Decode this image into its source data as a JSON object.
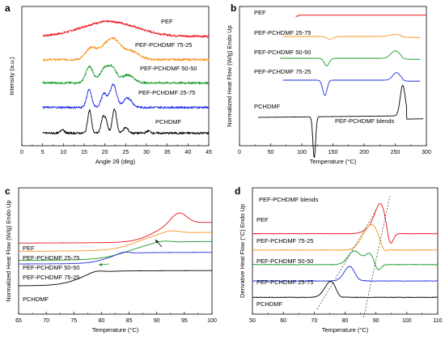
{
  "chart_data": [
    {
      "panel": "a",
      "type": "line",
      "xlabel": "Angle 2θ (deg)",
      "ylabel": "Intensity (a.u.)",
      "xlim": [
        0,
        45
      ],
      "xticks": [
        "0",
        "5",
        "10",
        "15",
        "20",
        "25",
        "30",
        "35",
        "40",
        "45"
      ],
      "series": [
        {
          "name": "PEF",
          "color": "#e8141c",
          "peaks": [
            [
              21,
              0.55,
              6.5
            ]
          ],
          "base": 0.04
        },
        {
          "name": "PEF-PCHDMF 75-25",
          "color": "#f7941d",
          "peaks": [
            [
              16.5,
              0.35,
              1.2
            ],
            [
              20.5,
              0.5,
              2.2
            ],
            [
              22.5,
              0.4,
              1.6
            ],
            [
              26.5,
              0.3,
              1.8
            ]
          ],
          "base": 0.05
        },
        {
          "name": "PEF-PCHDMF 50-50",
          "color": "#1a9a2a",
          "peaks": [
            [
              16.3,
              0.6,
              0.9
            ],
            [
              19.8,
              0.5,
              1.0
            ],
            [
              21.8,
              0.55,
              1.0
            ],
            [
              25.5,
              0.3,
              1.4
            ]
          ],
          "base": 0.06
        },
        {
          "name": "PEF-PCHDMF 25-75",
          "color": "#1f2ee0",
          "peaks": [
            [
              16.2,
              0.65,
              0.6
            ],
            [
              19.8,
              0.5,
              0.7
            ],
            [
              22.0,
              0.85,
              0.8
            ],
            [
              25.5,
              0.35,
              1.0
            ]
          ],
          "base": 0.06
        },
        {
          "name": "PCHDMF",
          "color": "#000000",
          "peaks": [
            [
              9.8,
              0.15,
              0.4
            ],
            [
              16.3,
              0.85,
              0.45
            ],
            [
              19.5,
              0.55,
              0.45
            ],
            [
              20.3,
              0.4,
              0.4
            ],
            [
              22.3,
              0.9,
              0.5
            ],
            [
              25,
              0.2,
              0.6
            ],
            [
              30.5,
              0.08,
              0.5
            ]
          ],
          "base": 0.05
        }
      ]
    },
    {
      "panel": "b",
      "type": "line",
      "xlabel": "Temperature (°C)",
      "ylabel": "Normalized Heat Flow (W/g) Endo Up",
      "xlim": [
        0,
        300
      ],
      "xticks": [
        "0",
        "50",
        "100",
        "150",
        "200",
        "250",
        "300"
      ],
      "annotation": "PEF-PCHDMF blends",
      "series": [
        {
          "name": "PEF",
          "color": "#e8141c",
          "xrange": [
            90,
            300
          ],
          "step": [
            95,
            0.03
          ]
        },
        {
          "name": "PEF-PCHDMF 25-75",
          "color": "#f7941d",
          "xrange": [
            70,
            290
          ],
          "dip": [
            145,
            -0.08,
            5
          ],
          "hump": [
            250,
            0.06,
            8
          ]
        },
        {
          "name": "PEF-PCHDMF 50-50",
          "color": "#1a9a2a",
          "xrange": [
            65,
            290
          ],
          "dip": [
            140,
            -0.22,
            4
          ],
          "hump": [
            250,
            0.22,
            7
          ]
        },
        {
          "name": "PEF-PCHDMF 75-25",
          "color": "#1f2ee0",
          "xrange": [
            70,
            290
          ],
          "dip": [
            137,
            -0.45,
            3.5
          ],
          "hump": [
            252,
            0.22,
            6
          ]
        },
        {
          "name": "PCHDMF",
          "color": "#000000",
          "xrange": [
            30,
            295
          ],
          "dip": [
            120,
            -1.2,
            2.2
          ],
          "hump": [
            262,
            0.9,
            4
          ]
        }
      ]
    },
    {
      "panel": "c",
      "type": "line",
      "xlabel": "Temperature (°C)",
      "ylabel": "Normalized Heat Flow (W/g) Endo Up",
      "xlim": [
        65,
        100
      ],
      "xticks": [
        "65",
        "70",
        "75",
        "80",
        "85",
        "90",
        "95",
        "100"
      ],
      "series": [
        {
          "name": "PEF",
          "color": "#e8141c",
          "tg": 89.5,
          "w": 1.8,
          "h": 0.22,
          "peak": [
            94,
            0.12,
            1.4
          ],
          "off": 0.47
        },
        {
          "name": "PEF-PCHDMF 25-75",
          "color": "#f7941d",
          "tg": 86.5,
          "w": 2.2,
          "h": 0.2,
          "peak": [
            92.5,
            0.03,
            1.5
          ],
          "off": 0.38
        },
        {
          "name": "PEF-PCHDMF 50-50",
          "color": "#1a9a2a",
          "tg": 85,
          "w": 2.5,
          "h": 0.2,
          "peak": [
            91,
            0.02,
            1.5
          ],
          "off": 0.28
        },
        {
          "name": "PEF-PCHDMF 75-25",
          "color": "#1f2ee0",
          "tg": 81,
          "w": 1.6,
          "h": 0.12,
          "peak": [
            84,
            0.02,
            1
          ],
          "off": 0.24
        },
        {
          "name": "PCHDMF",
          "color": "#000000",
          "tg": 76,
          "w": 1.8,
          "h": 0.16,
          "peak": [
            79,
            0.02,
            1.2
          ],
          "off": 0.0
        }
      ]
    },
    {
      "panel": "d",
      "type": "line",
      "xlabel": "Temperature (°C)",
      "ylabel": "Derivative Heat Flow (°C) Endo Up",
      "xlim": [
        50,
        110
      ],
      "xticks": [
        "50",
        "60",
        "70",
        "80",
        "90",
        "100",
        "110"
      ],
      "annotation": "PEF-PCHDMF blends",
      "series": [
        {
          "name": "PEF",
          "color": "#e8141c",
          "peaks": [
            [
              91.5,
              0.32,
              1.8
            ],
            [
              88,
              0.05,
              2
            ]
          ],
          "neg": [
            94.5,
            -0.17,
            1.0
          ],
          "off": 0.76
        },
        {
          "name": "PEF-PCHDMF 75-25",
          "color": "#f7941d",
          "peaks": [
            [
              89,
              0.25,
              2.2
            ],
            [
              86,
              0.08,
              2
            ]
          ],
          "neg": [
            92.5,
            -0.06,
            1.0
          ],
          "off": 0.58
        },
        {
          "name": "PEF-PCHDMF 50-50",
          "color": "#1a9a2a",
          "peaks": [
            [
              83,
              0.15,
              2.0
            ],
            [
              88,
              0.12,
              1.5
            ]
          ],
          "neg": [
            90.5,
            -0.08,
            1.0
          ],
          "off": 0.42
        },
        {
          "name": "PEF-PCHDMF 25-75",
          "color": "#1f2ee0",
          "peaks": [
            [
              81.5,
              0.16,
              1.8
            ]
          ],
          "neg": [
            84,
            -0.02,
            1
          ],
          "off": 0.24
        },
        {
          "name": "PCHDMF",
          "color": "#000000",
          "peaks": [
            [
              75.5,
              0.18,
              2.0
            ]
          ],
          "neg": [
            78,
            -0.05,
            1.2
          ],
          "off": 0.06
        }
      ]
    }
  ],
  "panels": {
    "a": {
      "letter": "a",
      "labels": [
        "PEF",
        "PEF-PCHDMF 75-25",
        "PEF-PCHDMF 50-50",
        "PEF-PCHDMF 25-75",
        "PCHDMF"
      ]
    },
    "b": {
      "letter": "b",
      "labels": [
        "PEF",
        "PEF-PCHDMF 25-75",
        "PEF-PCHDMF 50-50",
        "PEF-PCHDMF 75-25",
        "PCHDMF"
      ],
      "annotation": "PEF-PCHDMF blends"
    },
    "c": {
      "letter": "c",
      "labels": [
        "PEF",
        "PEF-PCHDMF 25-75",
        "PEF-PCHDMF 50-50",
        "PEF-PCHDMF 75-25",
        "PCHDMF"
      ]
    },
    "d": {
      "letter": "d",
      "labels": [
        "PEF",
        "PEF-PCHDMF 75-25",
        "PEF-PCHDMF 50-50",
        "PEF-PCHDMF 25-75",
        "PCHDMF"
      ],
      "annotation": "PEF-PCHDMF blends"
    }
  }
}
